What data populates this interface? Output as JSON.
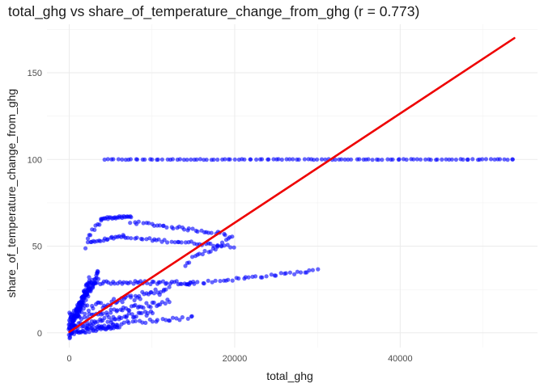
{
  "chart_data": {
    "type": "scatter",
    "title": "total_ghg vs share_of_temperature_change_from_ghg (r = 0.773)",
    "xlabel": "total_ghg",
    "ylabel": "share_of_temperature_change_from_ghg",
    "xlim": [
      -2700,
      56600
    ],
    "ylim": [
      -8.5,
      178
    ],
    "x_ticks": [
      0,
      20000,
      40000
    ],
    "x_tick_labels": [
      "0",
      "20000",
      "40000"
    ],
    "y_ticks": [
      0,
      50,
      100,
      150
    ],
    "y_tick_labels": [
      "0",
      "50",
      "100",
      "150"
    ],
    "grid": true,
    "point_color": "#0000ff",
    "point_opacity": 0.6,
    "fit_line": {
      "color": "#ee0000",
      "x": [
        0,
        53800
      ],
      "y": [
        0.5,
        170
      ]
    },
    "clusters": [
      {
        "x_range": [
          4200,
          53800
        ],
        "y_start": 100,
        "y_end": 100,
        "n": 120,
        "jitter": 0.2
      },
      {
        "x_range": [
          2000,
          3800
        ],
        "y_start": 48,
        "y_end": 64,
        "n": 10,
        "jitter": 1.2,
        "shape": "rise"
      },
      {
        "x_range": [
          3800,
          7500
        ],
        "y_start": 66,
        "y_end": 67,
        "n": 25,
        "jitter": 0.6
      },
      {
        "x_range": [
          7500,
          19000
        ],
        "y_start": 64,
        "y_end": 57,
        "n": 35,
        "jitter": 0.8
      },
      {
        "x_range": [
          2300,
          6500
        ],
        "y_start": 52,
        "y_end": 56,
        "n": 20,
        "jitter": 0.6
      },
      {
        "x_range": [
          6500,
          19800
        ],
        "y_start": 55,
        "y_end": 50,
        "n": 40,
        "jitter": 0.8
      },
      {
        "x_range": [
          14000,
          19800
        ],
        "y_start": 40,
        "y_end": 55,
        "n": 20,
        "jitter": 1.5
      },
      {
        "x_range": [
          0,
          3500
        ],
        "y_start": 5,
        "y_end": 34,
        "n": 80,
        "jitter": 3.0
      },
      {
        "x_range": [
          3500,
          15000
        ],
        "y_start": 29,
        "y_end": 29,
        "n": 45,
        "jitter": 1.0
      },
      {
        "x_range": [
          14000,
          30000
        ],
        "y_start": 28,
        "y_end": 36,
        "n": 40,
        "jitter": 0.8
      },
      {
        "x_range": [
          0,
          12000
        ],
        "y_start": 12,
        "y_end": 25,
        "n": 55,
        "jitter": 2.0
      },
      {
        "x_range": [
          0,
          12000
        ],
        "y_start": 8,
        "y_end": 18,
        "n": 50,
        "jitter": 1.5
      },
      {
        "x_range": [
          0,
          10000
        ],
        "y_start": 4,
        "y_end": 12,
        "n": 45,
        "jitter": 1.5
      },
      {
        "x_range": [
          0,
          15000
        ],
        "y_start": 3,
        "y_end": 9,
        "n": 40,
        "jitter": 1.0
      },
      {
        "x_range": [
          0,
          6000
        ],
        "y_start": 0,
        "y_end": 4,
        "n": 50,
        "jitter": 1.2
      },
      {
        "x_range": [
          0,
          2500
        ],
        "y_start": 0,
        "y_end": 30,
        "n": 70,
        "jitter": 4.0
      }
    ]
  }
}
